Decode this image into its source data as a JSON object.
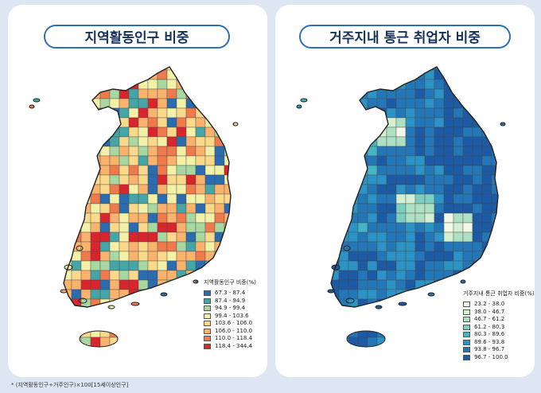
{
  "left_panel": {
    "title": "지역활동인구 비중",
    "legend": {
      "title": "지역활동인구 비중(%)",
      "items": [
        {
          "label": "67.3 - 87.4",
          "color": "#2b6cae"
        },
        {
          "label": "87.4 - 94.9",
          "color": "#46a5a6"
        },
        {
          "label": "94.9 - 99.4",
          "color": "#a9d7a2"
        },
        {
          "label": "99.4 - 103.6",
          "color": "#f3f1a8"
        },
        {
          "label": "103.6 - 106.0",
          "color": "#fbd98a"
        },
        {
          "label": "106.0 - 110.0",
          "color": "#f9b36d"
        },
        {
          "label": "110.0 - 118.4",
          "color": "#ef7b4c"
        },
        {
          "label": "118.4 - 344.4",
          "color": "#d7262e"
        }
      ]
    }
  },
  "right_panel": {
    "title": "거주지내 통근 취업자 비중",
    "legend": {
      "title": "거주지내 통근 취업자 비중(%)",
      "items": [
        {
          "label": "23.2 - 38.0",
          "color": "#f2f7e6"
        },
        {
          "label": "38.0 - 46.7",
          "color": "#d5efd1"
        },
        {
          "label": "46.7 - 61.2",
          "color": "#aee0c4"
        },
        {
          "label": "61.2 - 80.3",
          "color": "#7dcdc0"
        },
        {
          "label": "80.3 - 89.6",
          "color": "#45b4c6"
        },
        {
          "label": "89.6 - 93.8",
          "color": "#2c93c5"
        },
        {
          "label": "93.8 - 96.7",
          "color": "#2377b7"
        },
        {
          "label": "96.7 - 100.0",
          "color": "#1c5aa5"
        }
      ]
    }
  },
  "footnote": "* (지역활동인구÷거주인구)×100[15세이상인구]"
}
